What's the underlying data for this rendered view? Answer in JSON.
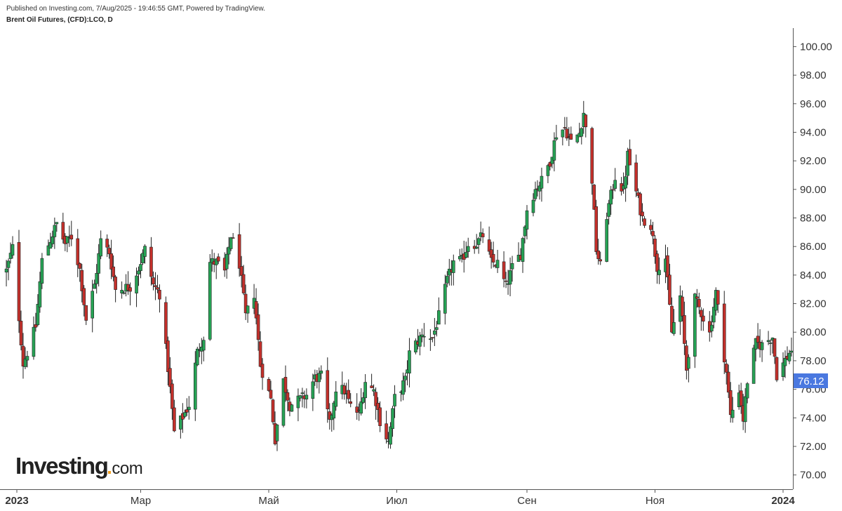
{
  "header": {
    "published": "Published on Investing.com, 7/Aug/2025 - 19:46:55 GMT, Powered by TradingView.",
    "symbol": "Brent Oil Futures, (CFD):LCO, D"
  },
  "logo": {
    "brand": "Investing",
    "tld": "com"
  },
  "colors": {
    "up": "#26a355",
    "down": "#c4302b",
    "wick": "#222222",
    "price_tag": "#4a78e0"
  },
  "chart_data": {
    "type": "candlestick",
    "ylim": [
      69,
      101.2
    ],
    "y_ticks": [
      "70.00",
      "72.00",
      "74.00",
      "76.00",
      "78.00",
      "80.00",
      "82.00",
      "84.00",
      "86.00",
      "88.00",
      "90.00",
      "92.00",
      "94.00",
      "96.00",
      "98.00",
      "100.00"
    ],
    "x_ticks": [
      {
        "label": "2023",
        "date": "2023-01-01"
      },
      {
        "label": "Мар",
        "date": "2023-03-01"
      },
      {
        "label": "Май",
        "date": "2023-05-01"
      },
      {
        "label": "Июл",
        "date": "2023-07-01"
      },
      {
        "label": "Сен",
        "date": "2023-09-01"
      },
      {
        "label": "Ноя",
        "date": "2023-11-01"
      },
      {
        "label": "2024",
        "date": "2024-01-01"
      }
    ],
    "last_price": "76.12",
    "close_path": [
      [
        "2022-12-27",
        84.3
      ],
      [
        "2022-12-30",
        85.9
      ],
      [
        "2023-01-04",
        77.8
      ],
      [
        "2023-01-06",
        78.6
      ],
      [
        "2023-01-10",
        80.4
      ],
      [
        "2023-01-13",
        85.0
      ],
      [
        "2023-01-17",
        86.5
      ],
      [
        "2023-01-20",
        87.6
      ],
      [
        "2023-01-24",
        86.2
      ],
      [
        "2023-01-27",
        86.7
      ],
      [
        "2023-01-31",
        84.4
      ],
      [
        "2023-02-03",
        80.9
      ],
      [
        "2023-02-07",
        83.3
      ],
      [
        "2023-02-10",
        86.4
      ],
      [
        "2023-02-14",
        85.6
      ],
      [
        "2023-02-17",
        83.0
      ],
      [
        "2023-02-21",
        83.1
      ],
      [
        "2023-02-24",
        83.2
      ],
      [
        "2023-02-28",
        84.5
      ],
      [
        "2023-03-03",
        85.8
      ],
      [
        "2023-03-07",
        83.3
      ],
      [
        "2023-03-10",
        82.7
      ],
      [
        "2023-03-14",
        77.5
      ],
      [
        "2023-03-17",
        73.0
      ],
      [
        "2023-03-20",
        73.8
      ],
      [
        "2023-03-24",
        74.9
      ],
      [
        "2023-03-28",
        78.6
      ],
      [
        "2023-03-31",
        79.7
      ],
      [
        "2023-04-03",
        84.9
      ],
      [
        "2023-04-06",
        84.9
      ],
      [
        "2023-04-10",
        84.2
      ],
      [
        "2023-04-13",
        86.8
      ],
      [
        "2023-04-17",
        84.8
      ],
      [
        "2023-04-20",
        81.1
      ],
      [
        "2023-04-24",
        82.7
      ],
      [
        "2023-04-27",
        77.7
      ],
      [
        "2023-05-02",
        75.3
      ],
      [
        "2023-05-04",
        72.5
      ],
      [
        "2023-05-08",
        76.6
      ],
      [
        "2023-05-11",
        74.9
      ],
      [
        "2023-05-15",
        75.2
      ],
      [
        "2023-05-19",
        75.6
      ],
      [
        "2023-05-23",
        76.8
      ],
      [
        "2023-05-26",
        76.9
      ],
      [
        "2023-05-30",
        73.5
      ],
      [
        "2023-06-02",
        76.1
      ],
      [
        "2023-06-06",
        75.9
      ],
      [
        "2023-06-09",
        74.8
      ],
      [
        "2023-06-13",
        74.3
      ],
      [
        "2023-06-16",
        76.6
      ],
      [
        "2023-06-20",
        75.9
      ],
      [
        "2023-06-23",
        73.8
      ],
      [
        "2023-06-27",
        72.3
      ],
      [
        "2023-06-30",
        75.4
      ],
      [
        "2023-07-05",
        76.6
      ],
      [
        "2023-07-07",
        78.5
      ],
      [
        "2023-07-11",
        79.4
      ],
      [
        "2023-07-14",
        79.9
      ],
      [
        "2023-07-18",
        79.6
      ],
      [
        "2023-07-21",
        81.1
      ],
      [
        "2023-07-25",
        83.6
      ],
      [
        "2023-07-28",
        84.9
      ],
      [
        "2023-08-01",
        85.0
      ],
      [
        "2023-08-04",
        86.2
      ],
      [
        "2023-08-08",
        86.2
      ],
      [
        "2023-08-11",
        86.8
      ],
      [
        "2023-08-15",
        84.9
      ],
      [
        "2023-08-18",
        84.8
      ],
      [
        "2023-08-22",
        83.2
      ],
      [
        "2023-08-25",
        84.5
      ],
      [
        "2023-08-29",
        85.5
      ],
      [
        "2023-09-01",
        88.6
      ],
      [
        "2023-09-05",
        90.0
      ],
      [
        "2023-09-08",
        90.6
      ],
      [
        "2023-09-12",
        92.0
      ],
      [
        "2023-09-15",
        93.9
      ],
      [
        "2023-09-19",
        94.3
      ],
      [
        "2023-09-22",
        93.3
      ],
      [
        "2023-09-26",
        93.96
      ],
      [
        "2023-09-28",
        95.4
      ],
      [
        "2023-10-02",
        90.7
      ],
      [
        "2023-10-04",
        85.8
      ],
      [
        "2023-10-06",
        84.6
      ],
      [
        "2023-10-09",
        88.2
      ],
      [
        "2023-10-13",
        90.9
      ],
      [
        "2023-10-17",
        89.9
      ],
      [
        "2023-10-19",
        92.4
      ],
      [
        "2023-10-23",
        89.8
      ],
      [
        "2023-10-26",
        88.0
      ],
      [
        "2023-10-30",
        87.5
      ],
      [
        "2023-11-02",
        84.6
      ],
      [
        "2023-11-06",
        85.2
      ],
      [
        "2023-11-09",
        80.0
      ],
      [
        "2023-11-13",
        82.5
      ],
      [
        "2023-11-16",
        77.4
      ],
      [
        "2023-11-20",
        82.3
      ],
      [
        "2023-11-23",
        81.4
      ],
      [
        "2023-11-27",
        79.9
      ],
      [
        "2023-11-30",
        82.8
      ],
      [
        "2023-12-05",
        77.2
      ],
      [
        "2023-12-07",
        74.1
      ],
      [
        "2023-12-11",
        76.0
      ],
      [
        "2023-12-13",
        73.9
      ],
      [
        "2023-12-15",
        76.6
      ],
      [
        "2023-12-19",
        79.2
      ],
      [
        "2023-12-22",
        79.1
      ],
      [
        "2023-12-27",
        79.7
      ],
      [
        "2023-12-29",
        77.0
      ],
      [
        "2024-01-03",
        78.3
      ],
      [
        "2024-01-05",
        78.8
      ],
      [
        "2024-01-07",
        76.12
      ]
    ]
  }
}
